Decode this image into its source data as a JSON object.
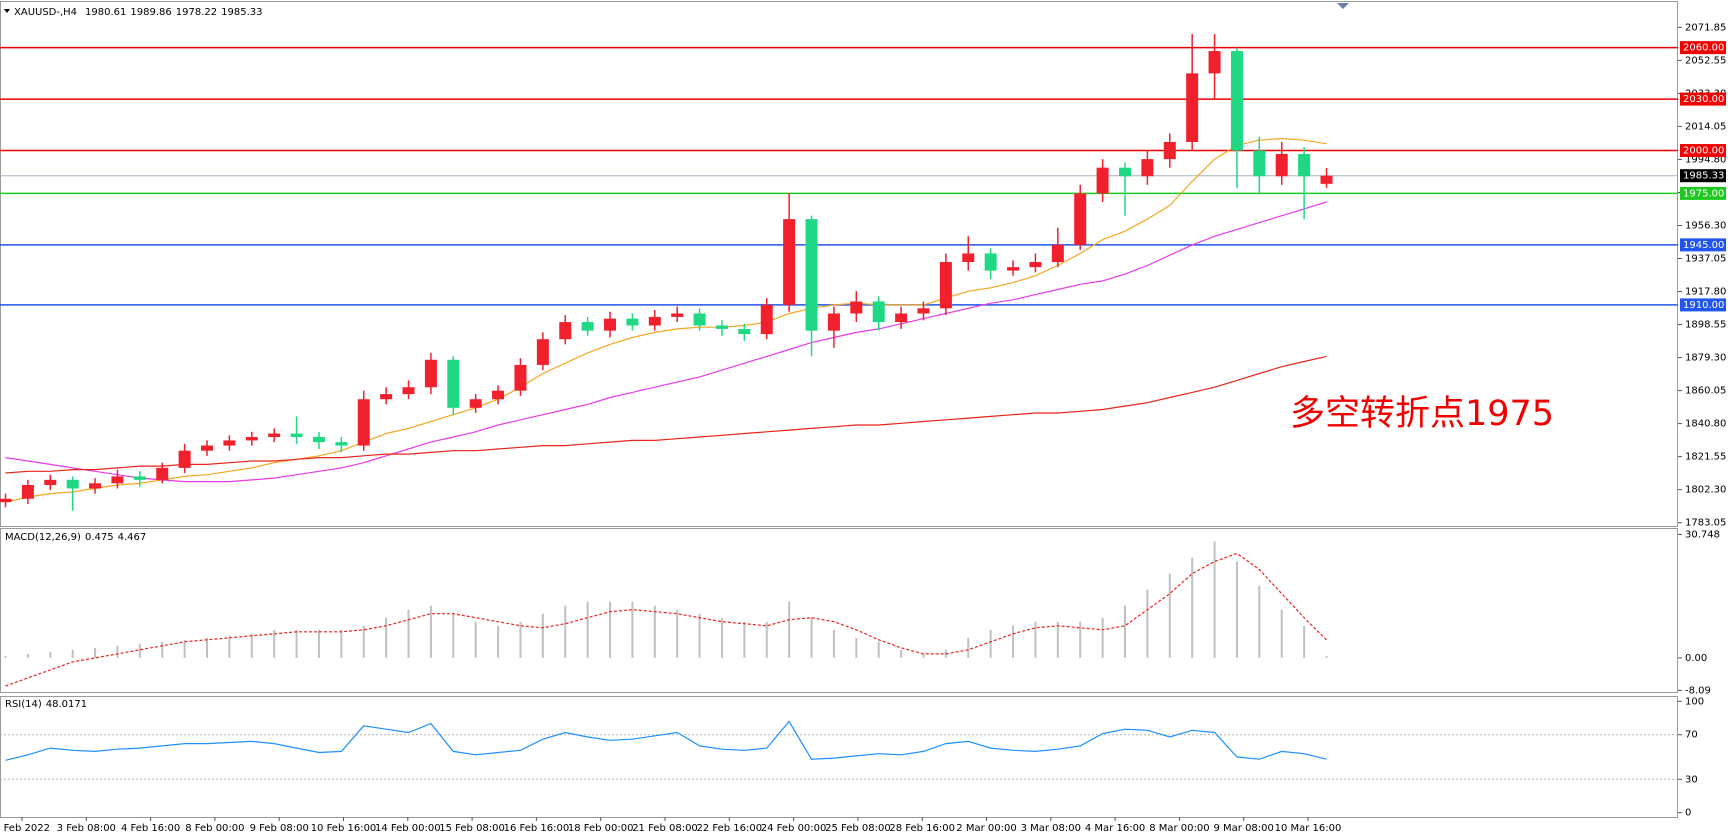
{
  "chart_data": [
    {
      "type": "candlestick",
      "title": "XAUUSD-,H4",
      "series": [
        {
          "up_color": "#f0202d",
          "down_color": "#1fd884",
          "open": [
            1795,
            1797,
            1805,
            1808,
            1803,
            1806,
            1810,
            1808,
            1815,
            1825,
            1828,
            1831,
            1833,
            1835,
            1833,
            1830,
            1828,
            1855,
            1858,
            1862,
            1878,
            1850,
            1855,
            1860,
            1875,
            1890,
            1900,
            1895,
            1902,
            1898,
            1903,
            1905,
            1898,
            1896,
            1893,
            1910,
            1960,
            1895,
            1905,
            1912,
            1900,
            1905,
            1908,
            1935,
            1940,
            1930,
            1932,
            1935,
            1945,
            1975,
            1990,
            1985,
            1995,
            2005,
            2045,
            2058,
            2000,
            1985,
            1998,
            1980.61
          ],
          "high": [
            1800,
            1808,
            1811,
            1810,
            1809,
            1814,
            1813,
            1818,
            1829,
            1831,
            1834,
            1836,
            1838,
            1845,
            1836,
            1833,
            1860,
            1862,
            1866,
            1882,
            1880,
            1858,
            1863,
            1879,
            1894,
            1904,
            1903,
            1906,
            1905,
            1907,
            1909,
            1908,
            1901,
            1899,
            1914,
            1975,
            1962,
            1909,
            1918,
            1915,
            1909,
            1912,
            1940,
            1950,
            1943,
            1936,
            1940,
            1955,
            1980,
            1995,
            1993,
            2000,
            2010,
            2068,
            2068,
            2060,
            2008,
            2005,
            2002,
            1989.86
          ],
          "low": [
            1792,
            1794,
            1802,
            1790,
            1800,
            1803,
            1804,
            1806,
            1812,
            1822,
            1825,
            1828,
            1830,
            1829,
            1826,
            1824,
            1825,
            1852,
            1855,
            1858,
            1846,
            1847,
            1852,
            1857,
            1872,
            1887,
            1892,
            1891,
            1895,
            1895,
            1900,
            1895,
            1892,
            1889,
            1890,
            1906,
            1880,
            1885,
            1900,
            1895,
            1896,
            1901,
            1904,
            1930,
            1925,
            1927,
            1929,
            1932,
            1942,
            1970,
            1962,
            1980,
            1990,
            2000,
            2030,
            1978,
            1975,
            1980,
            1960,
            1978.22
          ],
          "close": [
            1797,
            1805,
            1808,
            1803,
            1806,
            1810,
            1808,
            1815,
            1825,
            1828,
            1831,
            1833,
            1835,
            1833,
            1830,
            1828,
            1855,
            1858,
            1862,
            1878,
            1850,
            1855,
            1860,
            1875,
            1890,
            1900,
            1895,
            1902,
            1898,
            1903,
            1905,
            1898,
            1896,
            1893,
            1910,
            1960,
            1895,
            1905,
            1912,
            1900,
            1905,
            1908,
            1935,
            1940,
            1930,
            1932,
            1935,
            1945,
            1975,
            1990,
            1985,
            1995,
            2005,
            2045,
            2058,
            2000,
            1985,
            1998,
            1985,
            1985.33
          ]
        }
      ],
      "moving_averages": [
        {
          "color": "#f5a623",
          "values": [
            1795,
            1798,
            1800,
            1801,
            1803,
            1805,
            1806,
            1808,
            1810,
            1811,
            1813,
            1815,
            1818,
            1820,
            1822,
            1825,
            1830,
            1835,
            1838,
            1842,
            1846,
            1850,
            1855,
            1862,
            1870,
            1876,
            1882,
            1887,
            1891,
            1894,
            1896,
            1897,
            1897,
            1898,
            1900,
            1905,
            1908,
            1910,
            1911,
            1910,
            1910,
            1910,
            1914,
            1918,
            1920,
            1923,
            1927,
            1933,
            1940,
            1948,
            1953,
            1960,
            1968,
            1982,
            1995,
            2003,
            2006,
            2007,
            2006,
            2004
          ]
        },
        {
          "color": "#e83be8",
          "values": [
            1821,
            1819,
            1817,
            1815,
            1813,
            1811,
            1809,
            1808,
            1807,
            1807,
            1807,
            1808,
            1809,
            1811,
            1813,
            1815,
            1818,
            1822,
            1826,
            1830,
            1833,
            1836,
            1840,
            1843,
            1846,
            1849,
            1852,
            1856,
            1859,
            1862,
            1865,
            1868,
            1872,
            1876,
            1880,
            1884,
            1888,
            1891,
            1894,
            1896,
            1899,
            1902,
            1905,
            1908,
            1911,
            1913,
            1916,
            1919,
            1922,
            1924,
            1928,
            1933,
            1939,
            1945,
            1950,
            1954,
            1958,
            1962,
            1966,
            1970
          ]
        },
        {
          "color": "#e8251b",
          "values": [
            1812,
            1813,
            1813,
            1814,
            1814,
            1815,
            1816,
            1816,
            1817,
            1817,
            1818,
            1819,
            1819,
            1820,
            1821,
            1821,
            1822,
            1823,
            1823,
            1824,
            1825,
            1825,
            1826,
            1827,
            1828,
            1828,
            1829,
            1830,
            1831,
            1831,
            1832,
            1833,
            1834,
            1835,
            1836,
            1837,
            1838,
            1839,
            1840,
            1840,
            1841,
            1842,
            1843,
            1844,
            1845,
            1846,
            1847,
            1847,
            1848,
            1849,
            1851,
            1853,
            1856,
            1859,
            1862,
            1866,
            1870,
            1874,
            1877,
            1880
          ]
        }
      ],
      "levels": [
        {
          "value": 2060,
          "label": "2060.00",
          "color": "#f00000"
        },
        {
          "value": 2030,
          "label": "2030.00",
          "color": "#f00000"
        },
        {
          "value": 2000,
          "label": "2000.00",
          "color": "#f00000"
        },
        {
          "value": 1975,
          "label": "1975.00",
          "color": "#1ec81e"
        },
        {
          "value": 1945,
          "label": "1945.00",
          "color": "#2255ee"
        },
        {
          "value": 1910,
          "label": "1910.00",
          "color": "#2255ee"
        }
      ],
      "ylim": [
        1781.1,
        2086.6
      ],
      "yticks": [
        2071.85,
        2052.55,
        {
          "value": 2033.3,
          "label": "2033.30"
        },
        2014.05,
        {
          "value": 1994.8,
          "label": "1994.80"
        },
        1975.55,
        {
          "value": 1956.3,
          "label": "1956.30"
        },
        1937.05,
        {
          "value": 1917.8,
          "label": "1917.80"
        },
        1898.55,
        {
          "value": 1879.3,
          "label": "1879.30"
        },
        1860.05,
        {
          "value": 1840.8,
          "label": "1840.80"
        },
        1821.55,
        {
          "value": 1802.3,
          "label": "1802.30"
        },
        1783.05
      ],
      "time_labels": [
        "2 Feb 2022",
        "3 Feb 08:00",
        "4 Feb 16:00",
        "8 Feb 00:00",
        "9 Feb 08:00",
        "10 Feb 16:00",
        "14 Feb 00:00",
        "15 Feb 08:00",
        "16 Feb 16:00",
        "18 Feb 00:00",
        "21 Feb 08:00",
        "22 Feb 16:00",
        "24 Feb 00:00",
        "25 Feb 08:00",
        "28 Feb 16:00",
        "2 Mar 00:00",
        "3 Mar 08:00",
        "4 Mar 16:00",
        "8 Mar 00:00",
        "9 Mar 08:00",
        "10 Mar 16:00"
      ],
      "annotation": "多空转折点1975",
      "annotation_color": "#f00000"
    },
    {
      "type": "macd",
      "title": "MACD(12,26,9)",
      "histogram_color": "#c0c0c0",
      "signal_color": "#e8251b",
      "histogram": [
        0.5,
        1,
        1.5,
        2,
        2.5,
        3,
        3.5,
        4,
        4.5,
        5,
        5.5,
        6,
        7,
        7,
        7,
        7,
        8,
        10,
        12,
        13,
        11,
        9,
        8,
        9,
        11,
        13,
        14,
        14,
        14,
        13,
        12,
        11,
        10,
        9,
        9,
        14,
        10,
        7,
        5,
        4,
        2,
        1,
        2,
        5,
        7,
        8,
        9,
        9,
        9,
        10,
        13,
        17,
        21,
        25,
        29,
        24,
        18,
        12,
        8,
        0.475
      ],
      "signal": [
        -7,
        -5,
        -3,
        -1,
        0,
        1,
        2,
        3,
        4,
        4.5,
        5,
        5.5,
        6,
        6.5,
        6.5,
        6.5,
        7,
        8,
        9.5,
        11,
        11,
        10,
        9,
        8,
        7.5,
        8.5,
        10,
        11.5,
        12,
        11.5,
        11,
        10,
        9,
        8.5,
        8,
        9.5,
        10,
        9,
        7,
        4.5,
        2.5,
        1,
        1,
        2,
        4,
        6,
        7.5,
        8,
        7.5,
        7,
        8,
        12,
        16,
        21,
        24,
        26,
        22,
        16,
        10,
        4.467
      ],
      "ylim": [
        -8.5,
        32.1
      ],
      "yticks": [
        30.748,
        {
          "value": 0,
          "label": "0.00"
        },
        -8.09
      ]
    },
    {
      "type": "rsi",
      "title": "RSI(14)",
      "color": "#1e90ff",
      "values": [
        47,
        52,
        58,
        56,
        55,
        57,
        58,
        60,
        62,
        62,
        63,
        64,
        62,
        58,
        54,
        55,
        78,
        75,
        72,
        80,
        55,
        52,
        54,
        56,
        66,
        72,
        68,
        65,
        66,
        69,
        72,
        60,
        57,
        56,
        58,
        82,
        48,
        49,
        51,
        53,
        52,
        55,
        62,
        64,
        58,
        56,
        55,
        57,
        60,
        71,
        75,
        74,
        68,
        74,
        72,
        50,
        48,
        55,
        53,
        48.0171
      ],
      "levels": [
        70,
        30
      ],
      "ylim": [
        -3.9,
        103.9
      ],
      "yticks": [
        100,
        70,
        30,
        0
      ]
    }
  ]
}
